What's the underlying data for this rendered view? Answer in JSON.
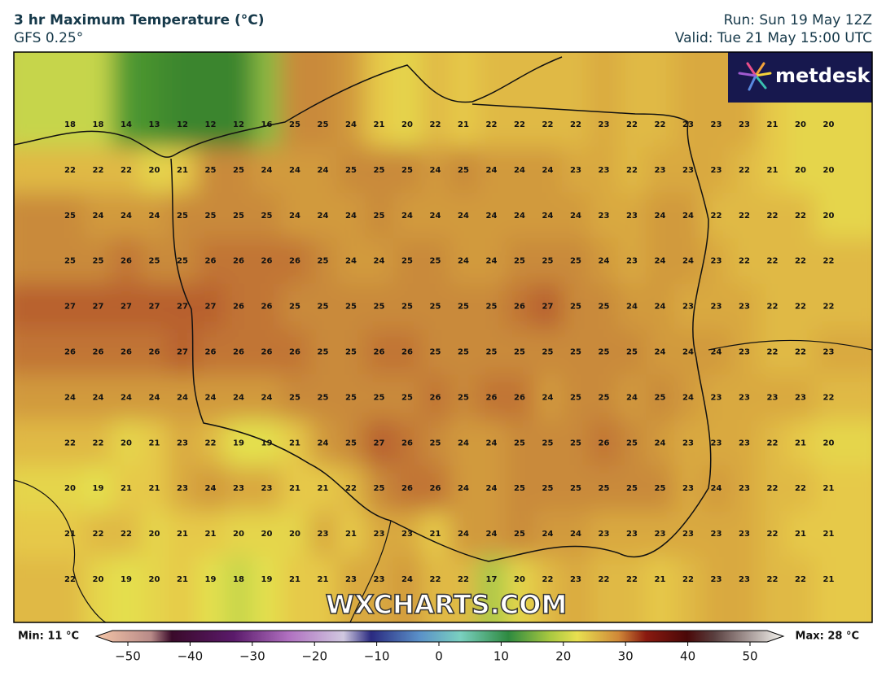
{
  "header": {
    "title": "3 hr Maximum Temperature (°C)",
    "subtitle": "GFS 0.25°",
    "run": "Run: Sun 19 May 12Z",
    "valid": "Valid: Tue 21 May 15:00 UTC"
  },
  "logo": "metdesk",
  "watermark": "WXCHARTS.COM",
  "map": {
    "values": [
      [
        18,
        18,
        14,
        13,
        12,
        12,
        12,
        16,
        25,
        25,
        24,
        21,
        20,
        22,
        21,
        22,
        22,
        22,
        22,
        23,
        22,
        22,
        23,
        23,
        23,
        21,
        20,
        20
      ],
      [
        22,
        22,
        22,
        20,
        21,
        25,
        25,
        24,
        24,
        24,
        25,
        25,
        25,
        24,
        25,
        24,
        24,
        24,
        23,
        23,
        22,
        23,
        23,
        23,
        22,
        21,
        20,
        20
      ],
      [
        25,
        24,
        24,
        24,
        25,
        25,
        25,
        25,
        24,
        24,
        24,
        25,
        24,
        24,
        24,
        24,
        24,
        24,
        24,
        23,
        23,
        24,
        24,
        22,
        22,
        22,
        22,
        20
      ],
      [
        25,
        25,
        26,
        25,
        25,
        26,
        26,
        26,
        26,
        25,
        24,
        24,
        25,
        25,
        24,
        24,
        25,
        25,
        25,
        24,
        23,
        24,
        24,
        23,
        22,
        22,
        22,
        22
      ],
      [
        27,
        27,
        27,
        27,
        27,
        27,
        26,
        26,
        25,
        25,
        25,
        25,
        25,
        25,
        25,
        25,
        26,
        27,
        25,
        25,
        24,
        24,
        23,
        23,
        23,
        22,
        22,
        22
      ],
      [
        26,
        26,
        26,
        26,
        27,
        26,
        26,
        26,
        26,
        25,
        25,
        26,
        26,
        25,
        25,
        25,
        25,
        25,
        25,
        25,
        25,
        24,
        24,
        24,
        23,
        22,
        22,
        23
      ],
      [
        24,
        24,
        24,
        24,
        24,
        24,
        24,
        24,
        25,
        25,
        25,
        25,
        25,
        26,
        25,
        26,
        26,
        24,
        25,
        25,
        24,
        25,
        24,
        23,
        23,
        23,
        23,
        22
      ],
      [
        22,
        22,
        20,
        21,
        23,
        22,
        19,
        19,
        21,
        24,
        25,
        27,
        26,
        25,
        24,
        24,
        25,
        25,
        25,
        26,
        25,
        24,
        23,
        23,
        23,
        22,
        21,
        20
      ],
      [
        20,
        19,
        21,
        21,
        23,
        24,
        23,
        23,
        21,
        21,
        22,
        25,
        26,
        26,
        24,
        24,
        25,
        25,
        25,
        25,
        25,
        25,
        23,
        24,
        23,
        22,
        22,
        21
      ],
      [
        21,
        22,
        22,
        20,
        21,
        21,
        20,
        20,
        20,
        23,
        21,
        23,
        23,
        21,
        24,
        24,
        25,
        24,
        24,
        23,
        23,
        23,
        23,
        23,
        23,
        22,
        21,
        21
      ],
      [
        22,
        20,
        19,
        20,
        21,
        19,
        18,
        19,
        21,
        21,
        23,
        23,
        24,
        22,
        22,
        17,
        20,
        22,
        23,
        22,
        22,
        21,
        22,
        23,
        23,
        22,
        22,
        21
      ]
    ]
  },
  "legend": {
    "min_label": "Min: 11 °C",
    "max_label": "Max: 28 °C",
    "ticks": [
      {
        "value": -50,
        "label": "−50"
      },
      {
        "value": -40,
        "label": "−40"
      },
      {
        "value": -30,
        "label": "−30"
      },
      {
        "value": -20,
        "label": "−20"
      },
      {
        "value": -10,
        "label": "−10"
      },
      0,
      10,
      20,
      30,
      40,
      50
    ]
  }
}
